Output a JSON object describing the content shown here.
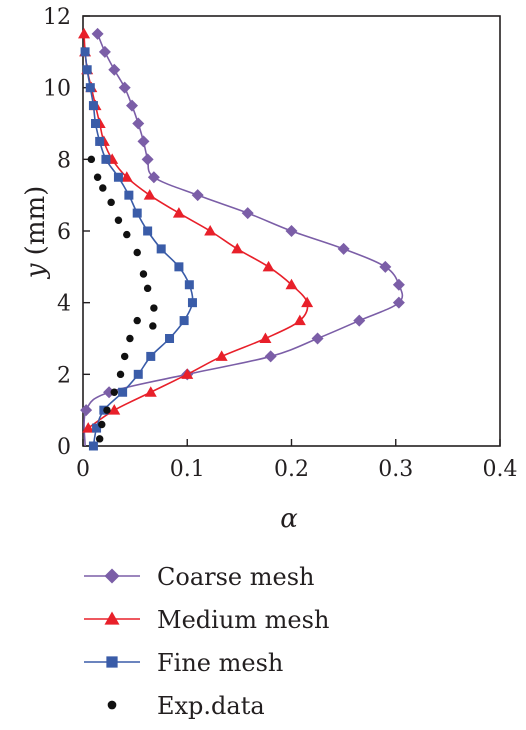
{
  "chart_data": {
    "type": "scatter",
    "xlabel": "α",
    "ylabel_var": "y",
    "ylabel_unit": " (mm)",
    "xlim": [
      0,
      0.4
    ],
    "ylim": [
      0,
      12
    ],
    "x_ticks": [
      "0",
      "0.1",
      "0.2",
      "0.3",
      "0.4"
    ],
    "y_ticks": [
      "0",
      "2",
      "4",
      "6",
      "8",
      "10",
      "12"
    ],
    "x_tick_values": [
      0,
      0.1,
      0.2,
      0.3,
      0.4
    ],
    "y_tick_values": [
      0,
      2,
      4,
      6,
      8,
      10,
      12
    ],
    "grid": false,
    "legend_position": "below",
    "series": [
      {
        "name": "Coarse mesh",
        "color": "#7b5ea7",
        "marker": "diamond",
        "line": true,
        "points": [
          [
            0.002,
            0.0
          ],
          [
            0.003,
            1.0
          ],
          [
            0.025,
            1.5
          ],
          [
            0.1,
            2.0
          ],
          [
            0.18,
            2.5
          ],
          [
            0.225,
            3.0
          ],
          [
            0.265,
            3.5
          ],
          [
            0.303,
            4.0
          ],
          [
            0.303,
            4.5
          ],
          [
            0.29,
            5.0
          ],
          [
            0.25,
            5.5
          ],
          [
            0.2,
            6.0
          ],
          [
            0.158,
            6.5
          ],
          [
            0.11,
            7.0
          ],
          [
            0.068,
            7.5
          ],
          [
            0.062,
            8.0
          ],
          [
            0.058,
            8.5
          ],
          [
            0.053,
            9.0
          ],
          [
            0.047,
            9.5
          ],
          [
            0.04,
            10.0
          ],
          [
            0.03,
            10.5
          ],
          [
            0.021,
            11.0
          ],
          [
            0.014,
            11.5
          ]
        ],
        "show_marker": [
          false,
          true,
          true,
          true,
          true,
          true,
          true,
          true,
          true,
          true,
          true,
          true,
          true,
          true,
          true,
          true,
          true,
          true,
          true,
          true,
          true,
          true,
          true
        ]
      },
      {
        "name": "Medium mesh",
        "color": "#e8202a",
        "marker": "triangle",
        "line": true,
        "points": [
          [
            0.005,
            0.5
          ],
          [
            0.03,
            1.0
          ],
          [
            0.065,
            1.5
          ],
          [
            0.1,
            2.0
          ],
          [
            0.133,
            2.5
          ],
          [
            0.175,
            3.0
          ],
          [
            0.208,
            3.5
          ],
          [
            0.215,
            4.0
          ],
          [
            0.2,
            4.5
          ],
          [
            0.178,
            5.0
          ],
          [
            0.148,
            5.5
          ],
          [
            0.122,
            6.0
          ],
          [
            0.092,
            6.5
          ],
          [
            0.064,
            7.0
          ],
          [
            0.042,
            7.5
          ],
          [
            0.028,
            8.0
          ],
          [
            0.02,
            8.5
          ],
          [
            0.016,
            9.0
          ],
          [
            0.012,
            9.5
          ],
          [
            0.008,
            10.0
          ],
          [
            0.004,
            10.5
          ],
          [
            0.002,
            11.0
          ],
          [
            0.001,
            11.5
          ]
        ]
      },
      {
        "name": "Fine mesh",
        "color": "#3a5ca8",
        "marker": "square",
        "line": true,
        "points": [
          [
            0.01,
            0.0
          ],
          [
            0.013,
            0.5
          ],
          [
            0.02,
            1.0
          ],
          [
            0.038,
            1.5
          ],
          [
            0.053,
            2.0
          ],
          [
            0.065,
            2.5
          ],
          [
            0.083,
            3.0
          ],
          [
            0.097,
            3.5
          ],
          [
            0.105,
            4.0
          ],
          [
            0.102,
            4.5
          ],
          [
            0.092,
            5.0
          ],
          [
            0.075,
            5.5
          ],
          [
            0.062,
            6.0
          ],
          [
            0.052,
            6.5
          ],
          [
            0.044,
            7.0
          ],
          [
            0.034,
            7.5
          ],
          [
            0.022,
            8.0
          ],
          [
            0.016,
            8.5
          ],
          [
            0.012,
            9.0
          ],
          [
            0.01,
            9.5
          ],
          [
            0.007,
            10.0
          ],
          [
            0.004,
            10.5
          ],
          [
            0.002,
            11.0
          ]
        ]
      },
      {
        "name": "Exp.data",
        "color": "#111111",
        "marker": "circle",
        "line": false,
        "points": [
          [
            0.016,
            0.2
          ],
          [
            0.018,
            0.6
          ],
          [
            0.023,
            1.0
          ],
          [
            0.03,
            1.5
          ],
          [
            0.036,
            2.0
          ],
          [
            0.04,
            2.5
          ],
          [
            0.045,
            3.0
          ],
          [
            0.052,
            3.5
          ],
          [
            0.067,
            3.35
          ],
          [
            0.068,
            3.85
          ],
          [
            0.062,
            4.4
          ],
          [
            0.058,
            4.8
          ],
          [
            0.052,
            5.4
          ],
          [
            0.042,
            5.9
          ],
          [
            0.034,
            6.3
          ],
          [
            0.027,
            6.8
          ],
          [
            0.019,
            7.2
          ],
          [
            0.014,
            7.5
          ],
          [
            0.008,
            8.0
          ]
        ]
      }
    ]
  }
}
